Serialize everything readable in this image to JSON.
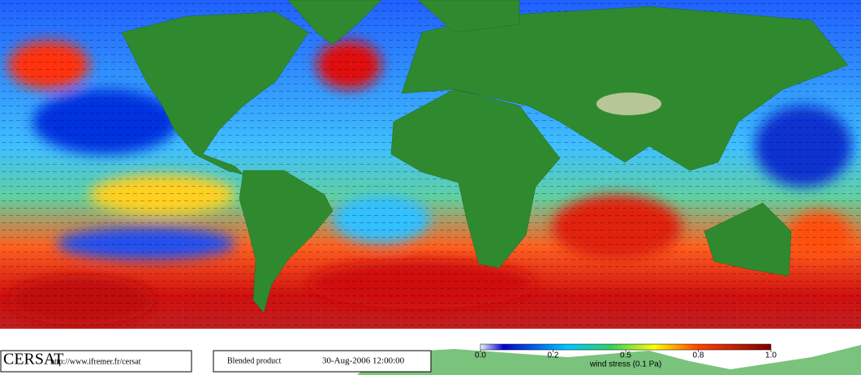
{
  "footer": {
    "logo": "CERSAT",
    "url": "http://www.ifremer.fr/cersat",
    "product": "Blended product",
    "date": "30-Aug-2006 12:00:00"
  },
  "colorbar": {
    "ticks": [
      {
        "value": 0,
        "label": "0.0"
      },
      0.2,
      0.5,
      0.8,
      {
        "value": 1,
        "label": "1.0"
      }
    ],
    "label": "wind stress (0.1 Pa)"
  }
}
